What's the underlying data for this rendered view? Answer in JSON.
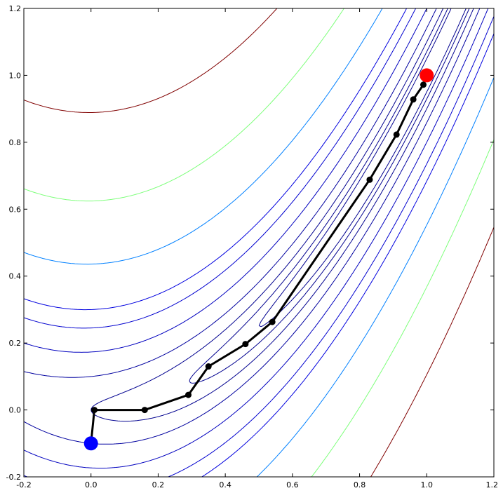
{
  "chart_data": {
    "type": "line",
    "title": "",
    "xlabel": "",
    "ylabel": "",
    "xlim": [
      -0.2,
      1.2
    ],
    "ylim": [
      -0.2,
      1.2
    ],
    "grid": false,
    "x_ticks": [
      "-0.2",
      "0.0",
      "0.2",
      "0.4",
      "0.6",
      "0.8",
      "1.0",
      "1.2"
    ],
    "y_ticks": [
      "-0.2",
      "0.0",
      "0.2",
      "0.4",
      "0.6",
      "0.8",
      "1.0",
      "1.2"
    ],
    "contour_function": "rosenbrock",
    "contour_levels": [
      {
        "level": 0.25,
        "color": "#00008f"
      },
      {
        "level": 0.5,
        "color": "#00008f"
      },
      {
        "level": 1,
        "color": "#00008f"
      },
      {
        "level": 2,
        "color": "#00009f"
      },
      {
        "level": 4,
        "color": "#0000bf"
      },
      {
        "level": 7,
        "color": "#0000cf"
      },
      {
        "level": 10,
        "color": "#0000df"
      },
      {
        "level": 20,
        "color": "#0080ff"
      },
      {
        "level": 40,
        "color": "#7dff7a"
      },
      {
        "level": 80,
        "color": "#800000"
      }
    ],
    "series": [
      {
        "values": [
          {
            "x": 0.0,
            "y": -0.1
          },
          {
            "x": 0.01,
            "y": 0.0
          },
          {
            "x": 0.16,
            "y": 0.0
          },
          {
            "x": 0.29,
            "y": 0.045
          },
          {
            "x": 0.35,
            "y": 0.13
          },
          {
            "x": 0.46,
            "y": 0.197
          },
          {
            "x": 0.54,
            "y": 0.263
          },
          {
            "x": 0.83,
            "y": 0.688
          },
          {
            "x": 0.91,
            "y": 0.823
          },
          {
            "x": 0.96,
            "y": 0.928
          },
          {
            "x": 0.99,
            "y": 0.972
          },
          {
            "x": 1.0,
            "y": 1.0
          }
        ]
      }
    ],
    "start_point": {
      "x": 0.0,
      "y": -0.1,
      "color": "#0000ff"
    },
    "end_point": {
      "x": 1.0,
      "y": 1.0,
      "color": "#ff0000"
    }
  }
}
